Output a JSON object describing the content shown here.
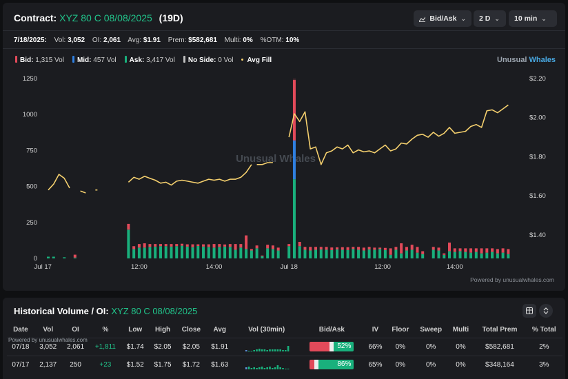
{
  "header": {
    "label": "Contract:",
    "contract": "XYZ 80 C 08/08/2025",
    "days": "(19D)"
  },
  "controls": {
    "bid_ask": "Bid/Ask",
    "days": "2 D",
    "interval": "10 min"
  },
  "stats": {
    "date": "7/18/2025:",
    "vol_label": "Vol:",
    "vol": "3,052",
    "oi_label": "OI:",
    "oi": "2,061",
    "avg_label": "Avg:",
    "avg": "$1.91",
    "prem_label": "Prem:",
    "prem": "$582,681",
    "multi_label": "Multi:",
    "multi": "0%",
    "otm_label": "%OTM:",
    "otm": "10%"
  },
  "legend": {
    "bid_label": "Bid:",
    "bid": "1,315 Vol",
    "mid_label": "Mid:",
    "mid": "457 Vol",
    "ask_label": "Ask:",
    "ask": "3,417 Vol",
    "noside_label": "No Side:",
    "noside": "0 Vol",
    "avgfill_label": "Avg Fill"
  },
  "brand": {
    "part1": "Unusual",
    "part2": "Whales"
  },
  "watermark": "Unusual Whales",
  "powered": "Powered by unusualwhales.com",
  "colors": {
    "bid": "#e24a5a",
    "mid": "#2f7fe0",
    "ask": "#19b07c",
    "noside": "#bfbfbf",
    "avg_fill": "#f5d06e",
    "contract": "#21c38a"
  },
  "chart_data": {
    "type": "bar+line",
    "y_left_ticks": [
      "1250",
      "1000",
      "750",
      "500",
      "250",
      "0"
    ],
    "y_left_range": [
      0,
      1250
    ],
    "y_right_ticks": [
      "$2.20",
      "$2.00",
      "$1.80",
      "$1.60",
      "$1.40"
    ],
    "y_right_range": [
      1.28,
      2.2
    ],
    "x_ticks": [
      "Jul 17",
      "12:00",
      "14:00",
      "Jul 18",
      "12:00",
      "14:00"
    ],
    "bars": [
      {
        "t": 0,
        "ask": 12,
        "bid": 0
      },
      {
        "t": 1,
        "ask": 12,
        "bid": 0
      },
      {
        "t": 3,
        "ask": 8,
        "bid": 0
      },
      {
        "t": 5,
        "ask": 6,
        "bid": 20
      },
      {
        "t": 15,
        "ask": 200,
        "bid": 40
      },
      {
        "t": 16,
        "ask": 65,
        "bid": 20
      },
      {
        "t": 17,
        "ask": 75,
        "bid": 25
      },
      {
        "t": 18,
        "ask": 75,
        "bid": 30
      },
      {
        "t": 19,
        "ask": 80,
        "bid": 20
      },
      {
        "t": 20,
        "ask": 82,
        "bid": 18
      },
      {
        "t": 21,
        "ask": 85,
        "bid": 15
      },
      {
        "t": 22,
        "ask": 85,
        "bid": 15
      },
      {
        "t": 23,
        "ask": 82,
        "bid": 18
      },
      {
        "t": 24,
        "ask": 85,
        "bid": 15
      },
      {
        "t": 25,
        "ask": 88,
        "bid": 14
      },
      {
        "t": 26,
        "ask": 82,
        "bid": 16
      },
      {
        "t": 27,
        "ask": 78,
        "bid": 20
      },
      {
        "t": 28,
        "ask": 86,
        "bid": 12
      },
      {
        "t": 29,
        "ask": 82,
        "bid": 16
      },
      {
        "t": 30,
        "ask": 80,
        "bid": 18
      },
      {
        "t": 31,
        "ask": 75,
        "bid": 25
      },
      {
        "t": 32,
        "ask": 80,
        "bid": 20
      },
      {
        "t": 33,
        "ask": 82,
        "bid": 15
      },
      {
        "t": 34,
        "ask": 80,
        "bid": 20
      },
      {
        "t": 35,
        "ask": 60,
        "bid": 40
      },
      {
        "t": 36,
        "ask": 75,
        "bid": 25
      },
      {
        "t": 37,
        "ask": 65,
        "bid": 95
      },
      {
        "t": 38,
        "ask": 55,
        "bid": 10
      },
      {
        "t": 39,
        "ask": 70,
        "bid": 20
      },
      {
        "t": 40,
        "ask": 15,
        "bid": 5
      },
      {
        "t": 41,
        "ask": 70,
        "bid": 25
      },
      {
        "t": 42,
        "ask": 65,
        "bid": 25
      },
      {
        "t": 43,
        "ask": 55,
        "bid": 20
      },
      {
        "t": 45,
        "ask": 85,
        "bid": 15
      },
      {
        "t": 46,
        "ask": 550,
        "bid": 420,
        "mid": 270
      },
      {
        "t": 47,
        "ask": 85,
        "bid": 30
      },
      {
        "t": 48,
        "ask": 60,
        "bid": 20
      },
      {
        "t": 49,
        "ask": 55,
        "bid": 25
      },
      {
        "t": 50,
        "ask": 60,
        "bid": 20
      },
      {
        "t": 51,
        "ask": 62,
        "bid": 18
      },
      {
        "t": 52,
        "ask": 60,
        "bid": 20
      },
      {
        "t": 53,
        "ask": 58,
        "bid": 18
      },
      {
        "t": 54,
        "ask": 62,
        "bid": 15
      },
      {
        "t": 55,
        "ask": 60,
        "bid": 18
      },
      {
        "t": 56,
        "ask": 58,
        "bid": 20
      },
      {
        "t": 57,
        "ask": 65,
        "bid": 15
      },
      {
        "t": 58,
        "ask": 60,
        "bid": 20
      },
      {
        "t": 59,
        "ask": 55,
        "bid": 20
      },
      {
        "t": 60,
        "ask": 62,
        "bid": 18
      },
      {
        "t": 61,
        "ask": 60,
        "bid": 15
      },
      {
        "t": 62,
        "ask": 65,
        "bid": 10
      },
      {
        "t": 63,
        "ask": 58,
        "bid": 15
      },
      {
        "t": 64,
        "ask": 25,
        "bid": 45
      },
      {
        "t": 65,
        "ask": 60,
        "bid": 20
      },
      {
        "t": 66,
        "ask": 35,
        "bid": 70
      },
      {
        "t": 67,
        "ask": 55,
        "bid": 25
      },
      {
        "t": 68,
        "ask": 60,
        "bid": 35
      },
      {
        "t": 69,
        "ask": 40,
        "bid": 40
      },
      {
        "t": 70,
        "ask": 30,
        "bid": 20
      },
      {
        "t": 72,
        "ask": 60,
        "bid": 20
      },
      {
        "t": 73,
        "ask": 55,
        "bid": 20
      },
      {
        "t": 74,
        "ask": 25,
        "bid": 10
      },
      {
        "t": 75,
        "ask": 50,
        "bid": 60
      },
      {
        "t": 76,
        "ask": 45,
        "bid": 25
      },
      {
        "t": 77,
        "ask": 50,
        "bid": 20
      },
      {
        "t": 78,
        "ask": 45,
        "bid": 25
      },
      {
        "t": 79,
        "ask": 40,
        "bid": 30
      },
      {
        "t": 80,
        "ask": 45,
        "bid": 25
      },
      {
        "t": 81,
        "ask": 35,
        "bid": 35
      },
      {
        "t": 82,
        "ask": 40,
        "bid": 30
      },
      {
        "t": 83,
        "ask": 45,
        "bid": 25
      },
      {
        "t": 84,
        "ask": 35,
        "bid": 30
      },
      {
        "t": 85,
        "ask": 40,
        "bid": 30
      },
      {
        "t": 86,
        "ask": 30,
        "bid": 35
      }
    ],
    "avg_fill_segments": [
      [
        [
          0,
          1.63
        ],
        [
          1,
          1.66
        ],
        [
          2,
          1.71
        ],
        [
          3,
          1.69
        ],
        [
          4,
          1.64
        ]
      ],
      [
        [
          6,
          1.625
        ],
        [
          7,
          1.615
        ]
      ],
      [
        [
          9,
          1.63
        ]
      ],
      [
        [
          15,
          1.67
        ],
        [
          16,
          1.695
        ],
        [
          17,
          1.685
        ],
        [
          18,
          1.7
        ],
        [
          19,
          1.69
        ],
        [
          20,
          1.68
        ],
        [
          21,
          1.665
        ],
        [
          22,
          1.67
        ],
        [
          23,
          1.655
        ],
        [
          24,
          1.675
        ],
        [
          25,
          1.68
        ],
        [
          26,
          1.675
        ],
        [
          27,
          1.67
        ],
        [
          28,
          1.665
        ],
        [
          29,
          1.675
        ],
        [
          30,
          1.685
        ],
        [
          31,
          1.68
        ],
        [
          32,
          1.685
        ],
        [
          33,
          1.675
        ],
        [
          34,
          1.685
        ],
        [
          35,
          1.685
        ],
        [
          36,
          1.695
        ],
        [
          37,
          1.72
        ],
        [
          38,
          1.76
        ]
      ],
      [
        [
          39,
          1.76
        ],
        [
          40,
          1.76
        ],
        [
          41,
          1.77
        ],
        [
          42,
          1.77
        ]
      ],
      [
        [
          45,
          1.9
        ],
        [
          46,
          2.02
        ],
        [
          47,
          1.98
        ],
        [
          48,
          2.03
        ],
        [
          49,
          1.84
        ],
        [
          50,
          1.85
        ],
        [
          51,
          1.76
        ],
        [
          52,
          1.82
        ],
        [
          53,
          1.83
        ],
        [
          54,
          1.85
        ],
        [
          55,
          1.84
        ],
        [
          56,
          1.86
        ],
        [
          57,
          1.82
        ],
        [
          58,
          1.835
        ],
        [
          59,
          1.825
        ],
        [
          60,
          1.83
        ],
        [
          61,
          1.82
        ],
        [
          62,
          1.84
        ],
        [
          63,
          1.86
        ],
        [
          64,
          1.83
        ],
        [
          65,
          1.84
        ],
        [
          66,
          1.87
        ],
        [
          67,
          1.865
        ],
        [
          68,
          1.89
        ],
        [
          69,
          1.91
        ],
        [
          70,
          1.915
        ],
        [
          71,
          1.9
        ],
        [
          72,
          1.925
        ],
        [
          73,
          1.905
        ],
        [
          74,
          1.92
        ],
        [
          75,
          1.95
        ],
        [
          76,
          1.92
        ],
        [
          77,
          1.925
        ],
        [
          78,
          1.93
        ],
        [
          79,
          1.955
        ],
        [
          80,
          1.965
        ],
        [
          81,
          1.95
        ],
        [
          82,
          2.035
        ],
        [
          83,
          2.04
        ],
        [
          84,
          2.025
        ],
        [
          85,
          2.045
        ],
        [
          86,
          2.065
        ]
      ]
    ]
  },
  "historical": {
    "title_label": "Historical Volume / OI:",
    "contract": "XYZ 80 C 08/08/2025",
    "powered": "Powered by unusualwhales.com",
    "columns": [
      "Date",
      "Vol",
      "OI",
      "%",
      "Low",
      "High",
      "Close",
      "Avg",
      "Vol (30min)",
      "Bid/Ask",
      "IV",
      "Floor",
      "Sweep",
      "Multi",
      "Total Prem",
      "% Total"
    ],
    "rows": [
      {
        "date": "07/18",
        "vol": "3,052",
        "oi": "2,061",
        "chg": "+1,811",
        "low": "$1.74",
        "high": "$2.05",
        "close": "$2.05",
        "avg": "$1.91",
        "ask_pct": "52%",
        "ask_frac": 0.52,
        "iv": "66%",
        "floor": "0%",
        "sweep": "0%",
        "multi": "0%",
        "prem": "$582,681",
        "pct_total": "2%"
      },
      {
        "date": "07/17",
        "vol": "2,137",
        "oi": "250",
        "chg": "+23",
        "low": "$1.52",
        "high": "$1.75",
        "close": "$1.72",
        "avg": "$1.63",
        "ask_pct": "86%",
        "ask_frac": 0.86,
        "iv": "65%",
        "floor": "0%",
        "sweep": "0%",
        "multi": "0%",
        "prem": "$348,164",
        "pct_total": "3%"
      }
    ]
  }
}
